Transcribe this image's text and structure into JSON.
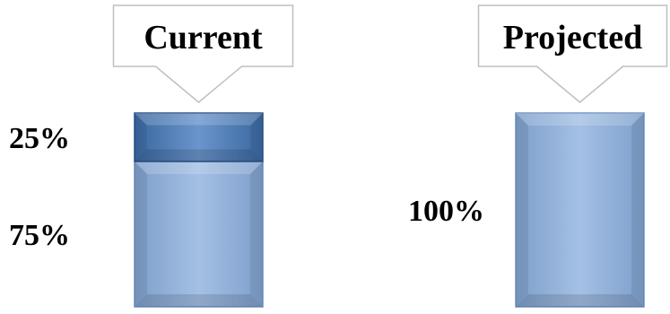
{
  "chart_data": {
    "type": "bar",
    "stacked": true,
    "categories": [
      "Current",
      "Projected"
    ],
    "series": [
      {
        "values": [
          75,
          100
        ],
        "color": "#8fb0d8"
      },
      {
        "values": [
          25,
          0
        ],
        "color": "#4f7fbf"
      }
    ],
    "data_labels": [
      [
        "75%",
        "100%"
      ],
      [
        "25%",
        ""
      ]
    ],
    "ylim": [
      0,
      100
    ],
    "grid": false,
    "legend": "none",
    "callout_style": "speech-bubble-above-bar"
  }
}
